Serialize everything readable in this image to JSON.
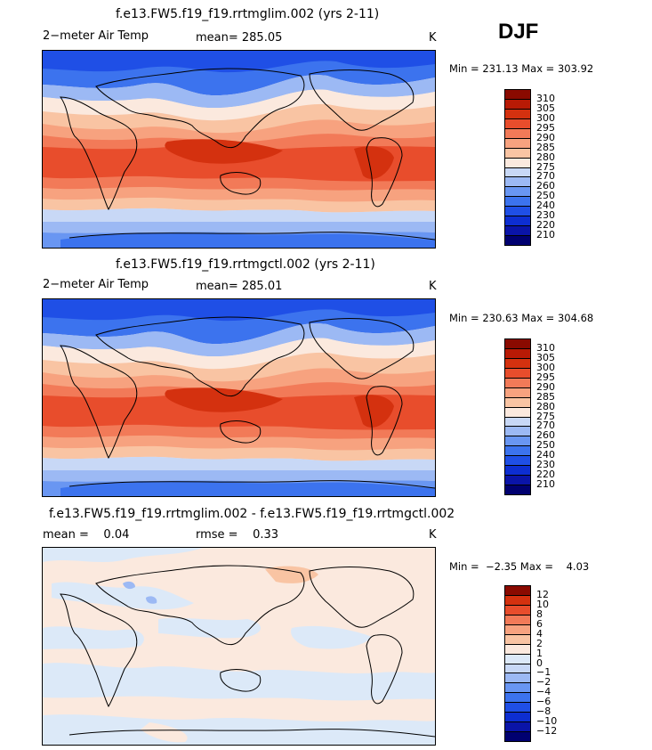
{
  "season": "DJF",
  "temp_colors": [
    "#000070",
    "#0a14a8",
    "#0d2ed1",
    "#1f4fe6",
    "#3c73ee",
    "#6996f2",
    "#9cb9f4",
    "#c8d8f6",
    "#fbe9de",
    "#f9c4a3",
    "#f7a27f",
    "#f27a58",
    "#e84d2c",
    "#d4310f",
    "#b81a05",
    "#8a0a00"
  ],
  "temp_labels": [
    "310",
    "305",
    "300",
    "295",
    "290",
    "285",
    "280",
    "275",
    "270",
    "260",
    "250",
    "240",
    "230",
    "220",
    "210"
  ],
  "diff_colors": [
    "#000070",
    "#0a14a8",
    "#0d2ed1",
    "#1f4fe6",
    "#3c73ee",
    "#6996f2",
    "#9cb9f4",
    "#c8d8f6",
    "#dce9f8",
    "#fbe9de",
    "#f9c4a3",
    "#f7a27f",
    "#f27a58",
    "#e84d2c",
    "#d4310f",
    "#8a0a00"
  ],
  "diff_labels": [
    "12",
    "10",
    "8",
    "6",
    "4",
    "2",
    "1",
    "0",
    "−1",
    "−2",
    "−4",
    "−6",
    "−8",
    "−10",
    "−12"
  ],
  "panels": [
    {
      "title": "f.e13.FW5.f19_f19.rrtmglim.002 (yrs 2-11)",
      "variable": "2−meter Air Temp",
      "stat": "mean= 285.05",
      "units": "K",
      "minmax": "Min = 231.13 Max = 303.92"
    },
    {
      "title": "f.e13.FW5.f19_f19.rrtmgctl.002 (yrs 2-11)",
      "variable": "2−meter Air Temp",
      "stat": "mean= 285.01",
      "units": "K",
      "minmax": "Min = 230.63 Max = 304.68"
    },
    {
      "title": "f.e13.FW5.f19_f19.rrtmglim.002 - f.e13.FW5.f19_f19.rrtmgctl.002",
      "stat_left": "mean =    0.04",
      "stat_mid": "rmse =    0.33",
      "units": "K",
      "minmax": "Min =  −2.35 Max =    4.03"
    }
  ]
}
